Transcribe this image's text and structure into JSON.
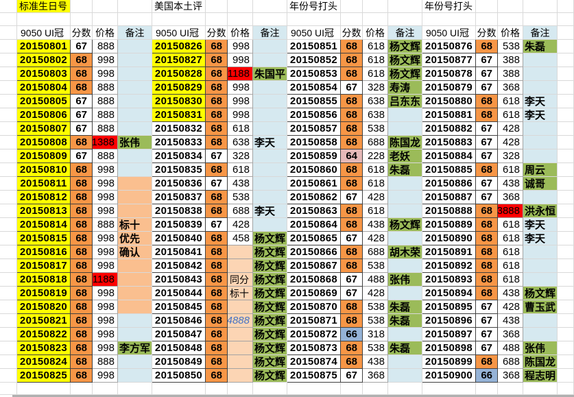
{
  "sheet": {
    "group_titles": [
      {
        "text": "标准生日号",
        "bg": "yellow"
      },
      {
        "text": "美国本土评"
      },
      {
        "text": "年份号打头"
      },
      {
        "text": "年份号打头"
      }
    ],
    "column_headers": [
      "9050 UI冠",
      "分数",
      "价格",
      "备注"
    ],
    "colors": {
      "yellow": "#FFFF00",
      "orange": "#F79646",
      "red": "#FF0000",
      "green": "#9BBB59",
      "note_blue": "#D6E9F0",
      "peach": "#FABF8F",
      "peach_light": "#FCD5B4",
      "pink": "#E6B9B8",
      "blue_score": "#95B3D7",
      "price_blue": "#4472C4"
    },
    "score_bg": {
      "68": "orange",
      "66": "blue_score",
      "64": "pink"
    },
    "legend": "row = [id, score, price, note, flags]; flags: Y=id yellow bg, R=price red bg, P=price peach bg, B=price blue italic text, G=note green bg, N=note peach bg; default note bg = pale blue",
    "groups": [
      {
        "rows": [
          [
            "20150801",
            "67",
            "888",
            "",
            "Y"
          ],
          [
            "20150802",
            "68",
            "998",
            "",
            "Y"
          ],
          [
            "20150803",
            "68",
            "998",
            "",
            "Y"
          ],
          [
            "20150804",
            "68",
            "888",
            "",
            "Y"
          ],
          [
            "20150805",
            "67",
            "888",
            "",
            "Y"
          ],
          [
            "20150806",
            "67",
            "888",
            "",
            "Y"
          ],
          [
            "20150807",
            "67",
            "888",
            "",
            "Y"
          ],
          [
            "20150808",
            "68",
            "1388",
            "张伟",
            "Y R G"
          ],
          [
            "20150809",
            "67",
            "888",
            "",
            "Y"
          ],
          [
            "20150810",
            "68",
            "998",
            "",
            "Y"
          ],
          [
            "20150811",
            "68",
            "998",
            "",
            "Y N"
          ],
          [
            "20150812",
            "68",
            "998",
            "",
            "Y N"
          ],
          [
            "20150813",
            "68",
            "998",
            "",
            "Y N"
          ],
          [
            "20150814",
            "68",
            "888",
            "标十",
            "Y N"
          ],
          [
            "20150815",
            "68",
            "998",
            "优先",
            "Y N"
          ],
          [
            "20150816",
            "68",
            "998",
            "确认",
            "Y N"
          ],
          [
            "20150817",
            "68",
            "998",
            "",
            "Y N"
          ],
          [
            "20150818",
            "68",
            "1188",
            "",
            "Y R N"
          ],
          [
            "20150819",
            "68",
            "998",
            "",
            "Y N"
          ],
          [
            "20150820",
            "68",
            "998",
            "",
            "Y N"
          ],
          [
            "20150821",
            "68",
            "998",
            "",
            "Y"
          ],
          [
            "20150822",
            "68",
            "998",
            "",
            "Y"
          ],
          [
            "20150823",
            "68",
            "998",
            "李方军",
            "Y G"
          ],
          [
            "20150824",
            "68",
            "888",
            "",
            "Y"
          ],
          [
            "20150825",
            "68",
            "998",
            "",
            "Y"
          ]
        ]
      },
      {
        "rows": [
          [
            "20150826",
            "68",
            "998",
            "",
            "Y"
          ],
          [
            "20150827",
            "68",
            "998",
            "",
            "Y"
          ],
          [
            "20150828",
            "68",
            "1188",
            "朱国平",
            "Y R G"
          ],
          [
            "20150829",
            "68",
            "998",
            "",
            "Y"
          ],
          [
            "20150830",
            "68",
            "998",
            "",
            "Y"
          ],
          [
            "20150831",
            "68",
            "998",
            "",
            "Y"
          ],
          [
            "20150832",
            "68",
            "618",
            "",
            ""
          ],
          [
            "20150833",
            "68",
            "638",
            "李天",
            ""
          ],
          [
            "20150834",
            "67",
            "328",
            "",
            ""
          ],
          [
            "20150835",
            "68",
            "618",
            "",
            ""
          ],
          [
            "20150836",
            "67",
            "438",
            "",
            ""
          ],
          [
            "20150837",
            "68",
            "538",
            "",
            ""
          ],
          [
            "20150838",
            "68",
            "688",
            "李天",
            ""
          ],
          [
            "20150839",
            "67",
            "428",
            "",
            ""
          ],
          [
            "20150840",
            "68",
            "458",
            "杨文辉",
            "G"
          ],
          [
            "20150841",
            "68",
            "",
            "杨文辉",
            "P G"
          ],
          [
            "20150842",
            "68",
            "",
            "杨文辉",
            "P G"
          ],
          [
            "20150843",
            "68",
            "同分",
            "杨文辉",
            "P G"
          ],
          [
            "20150844",
            "68",
            "标十",
            "杨文辉",
            "P G"
          ],
          [
            "20150845",
            "68",
            "",
            "杨文辉",
            "P G"
          ],
          [
            "20150846",
            "68",
            "4888",
            "杨文辉",
            "P B G"
          ],
          [
            "20150847",
            "68",
            "",
            "杨文辉",
            "P G"
          ],
          [
            "20150848",
            "68",
            "",
            "杨文辉",
            "P G"
          ],
          [
            "20150849",
            "68",
            "",
            "杨文辉",
            "P G"
          ],
          [
            "20150850",
            "68",
            "",
            "杨文辉",
            "P G"
          ]
        ]
      },
      {
        "rows": [
          [
            "20150851",
            "68",
            "618",
            "杨文辉",
            "G"
          ],
          [
            "20150852",
            "68",
            "618",
            "杨文辉",
            "G"
          ],
          [
            "20150853",
            "68",
            "618",
            "杨文辉",
            "G"
          ],
          [
            "20150854",
            "67",
            "328",
            "寿涛",
            "G"
          ],
          [
            "20150855",
            "68",
            "638",
            "吕东东",
            "G"
          ],
          [
            "20150856",
            "68",
            "638",
            "",
            ""
          ],
          [
            "20150857",
            "68",
            "538",
            "",
            ""
          ],
          [
            "20150858",
            "68",
            "688",
            "陈国龙",
            "G"
          ],
          [
            "20150859",
            "64",
            "228",
            "老妖",
            "G"
          ],
          [
            "20150860",
            "68",
            "618",
            "朱磊",
            "G"
          ],
          [
            "20150861",
            "68",
            "618",
            "",
            ""
          ],
          [
            "20150862",
            "67",
            "428",
            "",
            ""
          ],
          [
            "20150863",
            "68",
            "618",
            "",
            ""
          ],
          [
            "20150864",
            "68",
            "438",
            "杨文辉",
            "G"
          ],
          [
            "20150865",
            "67",
            "428",
            "",
            ""
          ],
          [
            "20150866",
            "68",
            "688",
            "胡木荣",
            "G"
          ],
          [
            "20150867",
            "68",
            "538",
            "",
            ""
          ],
          [
            "20150868",
            "67",
            "488",
            "张伟",
            "G"
          ],
          [
            "20150869",
            "67",
            "428",
            "",
            ""
          ],
          [
            "20150870",
            "68",
            "538",
            "朱磊",
            "G"
          ],
          [
            "20150871",
            "68",
            "538",
            "朱磊",
            "G"
          ],
          [
            "20150872",
            "66",
            "318",
            "",
            ""
          ],
          [
            "20150873",
            "68",
            "538",
            "朱磊",
            "G"
          ],
          [
            "20150874",
            "68",
            "438",
            "",
            ""
          ],
          [
            "20150875",
            "67",
            "368",
            "",
            ""
          ]
        ]
      },
      {
        "rows": [
          [
            "20150876",
            "68",
            "538",
            "朱磊",
            "G"
          ],
          [
            "20150877",
            "67",
            "388",
            "",
            ""
          ],
          [
            "20150878",
            "67",
            "388",
            "",
            ""
          ],
          [
            "20150879",
            "67",
            "368",
            "",
            ""
          ],
          [
            "20150880",
            "68",
            "618",
            "李天",
            ""
          ],
          [
            "20150881",
            "68",
            "618",
            "李天",
            ""
          ],
          [
            "20150882",
            "67",
            "428",
            "",
            ""
          ],
          [
            "20150883",
            "67",
            "428",
            "",
            ""
          ],
          [
            "20150884",
            "67",
            "328",
            "",
            ""
          ],
          [
            "20150885",
            "68",
            "618",
            "周云",
            "G"
          ],
          [
            "20150886",
            "67",
            "438",
            "诚哥",
            "G"
          ],
          [
            "20150887",
            "67",
            "368",
            "",
            ""
          ],
          [
            "20150888",
            "68",
            "3888",
            "洪永恒",
            "R G"
          ],
          [
            "20150889",
            "68",
            "618",
            "李天",
            ""
          ],
          [
            "20150890",
            "68",
            "618",
            "李天",
            ""
          ],
          [
            "20150891",
            "68",
            "618",
            "",
            ""
          ],
          [
            "20150892",
            "68",
            "618",
            "",
            ""
          ],
          [
            "20150893",
            "68",
            "618",
            "",
            ""
          ],
          [
            "20150894",
            "68",
            "438",
            "杨文辉",
            "G"
          ],
          [
            "20150895",
            "67",
            "428",
            "曹玉武",
            "G"
          ],
          [
            "20150896",
            "67",
            "438",
            "",
            ""
          ],
          [
            "20150897",
            "67",
            "368",
            "",
            ""
          ],
          [
            "20150898",
            "67",
            "488",
            "张伟",
            "G"
          ],
          [
            "20150899",
            "68",
            "688",
            "陈国龙",
            "G"
          ],
          [
            "20150900",
            "66",
            "368",
            "程志明",
            "G"
          ]
        ]
      }
    ]
  }
}
